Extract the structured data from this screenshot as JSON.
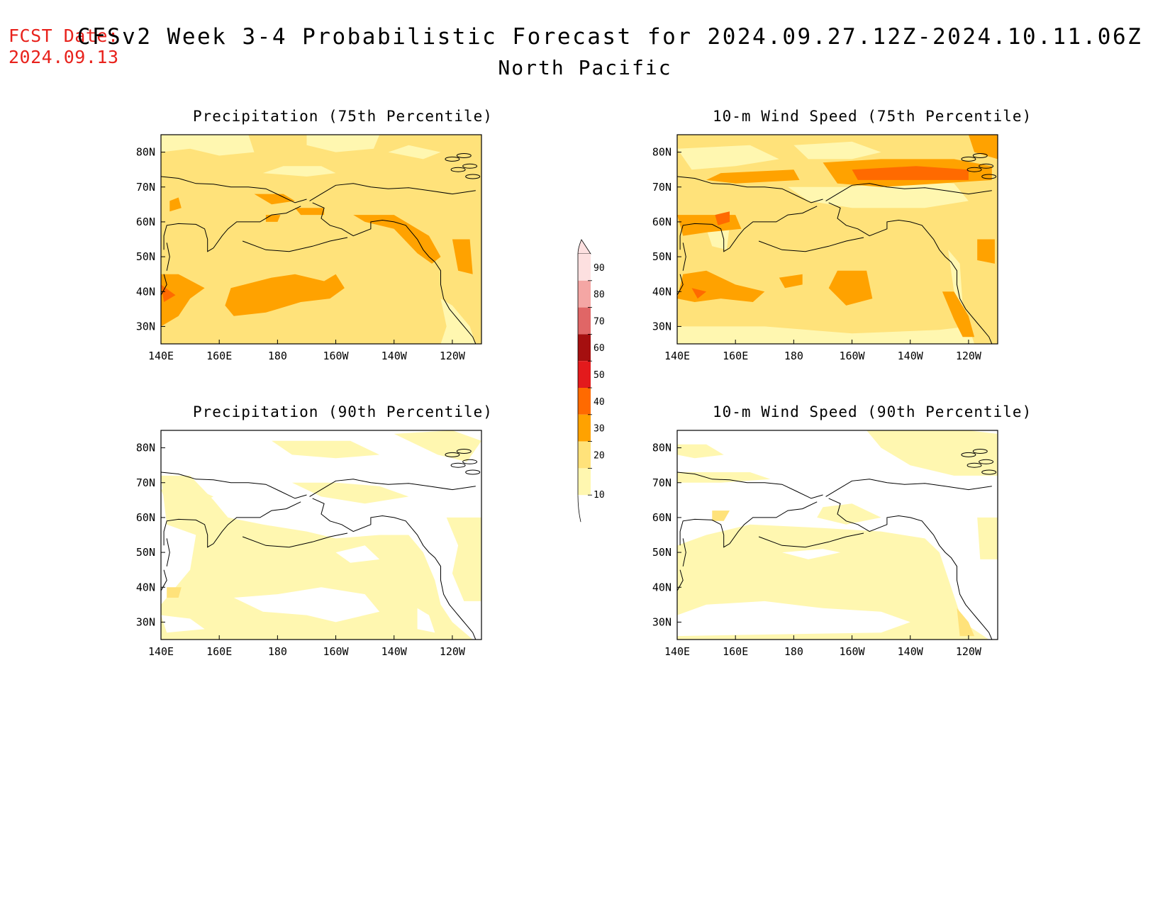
{
  "header": {
    "fcst_label": "FCST Date:",
    "fcst_date": "2024.09.13",
    "title": "CFSv2 Week 3-4 Probabilistic Forecast for 2024.09.27.12Z-2024.10.11.06Z",
    "region": "North Pacific"
  },
  "map_axes": {
    "lon_ticks": [
      "140E",
      "160E",
      "180",
      "160W",
      "140W",
      "120W"
    ],
    "lat_ticks": [
      "80N",
      "70N",
      "60N",
      "50N",
      "40N",
      "30N"
    ]
  },
  "panels": [
    {
      "id": "precip75",
      "title": "Precipitation (75th Percentile)"
    },
    {
      "id": "wind75",
      "title": "10-m Wind Speed (75th Percentile)"
    },
    {
      "id": "precip90",
      "title": "Precipitation (90th Percentile)"
    },
    {
      "id": "wind90",
      "title": "10-m Wind Speed (90th Percentile)"
    }
  ],
  "colorbar": {
    "labels": [
      "90",
      "80",
      "70",
      "60",
      "50",
      "40",
      "30",
      "20",
      "10"
    ],
    "colors": [
      "#fde0e0",
      "#f4a6a4",
      "#e06666",
      "#a50f0f",
      "#e31a1c",
      "#ff6a00",
      "#ffa200",
      "#ffe27a",
      "#fff7b0"
    ]
  }
}
